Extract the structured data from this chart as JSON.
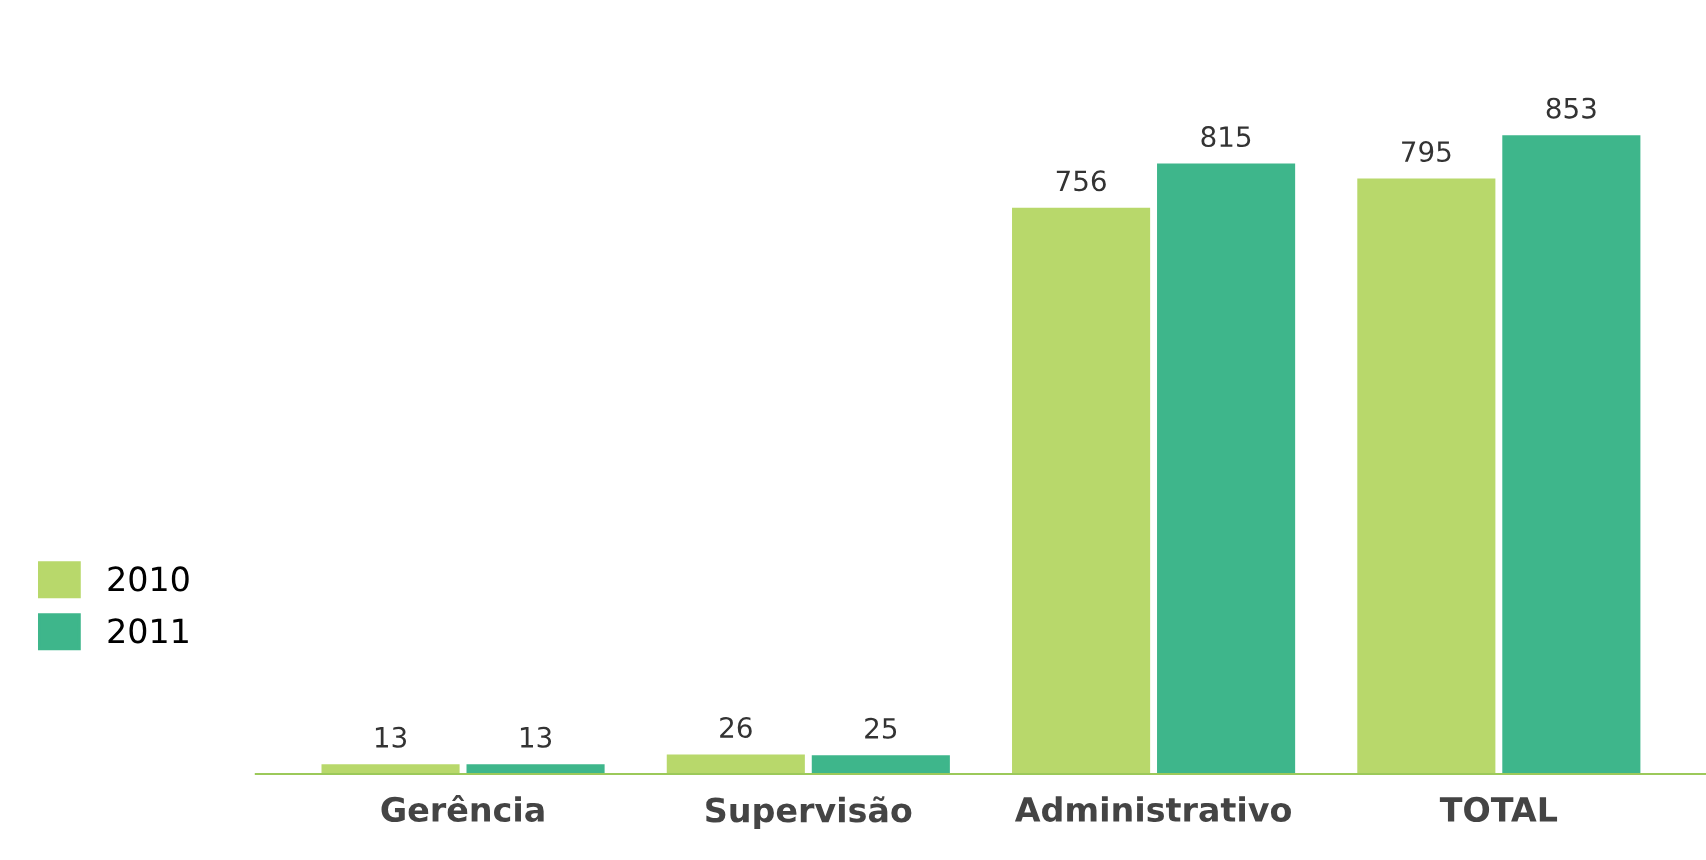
{
  "chart_data": {
    "type": "bar",
    "categories": [
      "Gerência",
      "Supervisão",
      "Administrativo",
      "TOTAL"
    ],
    "series": [
      {
        "name": "2010",
        "color": "#b8d86b",
        "values": [
          13,
          26,
          756,
          795
        ]
      },
      {
        "name": "2011",
        "color": "#3eb68b",
        "values": [
          13,
          25,
          815,
          853
        ]
      }
    ],
    "data_labels": true,
    "legend": "left",
    "grid": false
  }
}
